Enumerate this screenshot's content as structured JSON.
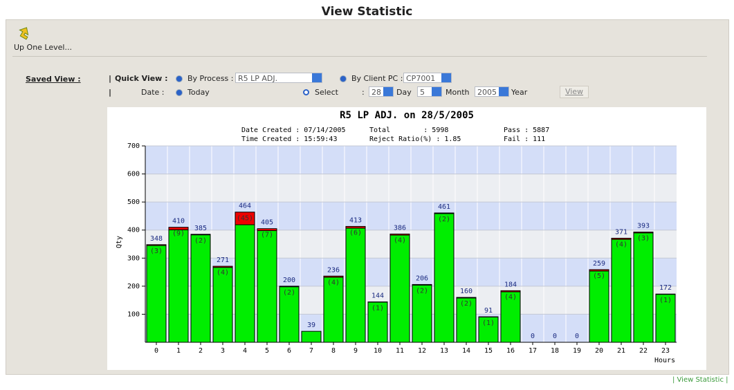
{
  "header": {
    "title": "View Statistic"
  },
  "toolbar": {
    "up_label": "Up One Level..."
  },
  "form": {
    "saved_view": "Saved View :",
    "sep": "|",
    "quick_view": "Quick View :",
    "by_process": "By Process :",
    "process_value": "R5 LP ADJ.",
    "by_client": "By Client PC :",
    "client_value": "CP7001",
    "date_label": "Date :",
    "today": "Today",
    "select": "Select",
    "colon": ":",
    "day_value": "28",
    "day": "Day",
    "month_value": "5",
    "month": "Month",
    "year_value": "2005",
    "year": "Year",
    "view": "View"
  },
  "chart_data": {
    "type": "stacked_bar",
    "title": "R5 LP ADJ. on 28/5/2005",
    "info": [
      "Date Created : 07/14/2005",
      "Total        : 5998",
      "Pass : 5887",
      "Time Created : 15:59:43",
      "Reject Ratio(%) : 1.85",
      "Fail : 111"
    ],
    "y_label": "Qty",
    "x_label": "Hours",
    "categories": [
      "0",
      "1",
      "2",
      "3",
      "4",
      "5",
      "6",
      "7",
      "8",
      "9",
      "10",
      "11",
      "12",
      "13",
      "14",
      "15",
      "16",
      "17",
      "18",
      "19",
      "20",
      "21",
      "22",
      "23"
    ],
    "totals": [
      348,
      410,
      385,
      271,
      464,
      405,
      200,
      39,
      236,
      413,
      144,
      386,
      206,
      461,
      160,
      91,
      184,
      0,
      0,
      0,
      259,
      371,
      393,
      172
    ],
    "series": [
      {
        "name": "Pass",
        "color": "#00ee00",
        "values": [
          345,
          401,
          383,
          267,
          419,
          398,
          198,
          39,
          232,
          407,
          143,
          382,
          204,
          459,
          158,
          90,
          180,
          0,
          0,
          0,
          254,
          367,
          390,
          171
        ]
      },
      {
        "name": "Reject",
        "color": "#ee0000",
        "values": [
          3,
          9,
          2,
          4,
          45,
          7,
          2,
          0,
          4,
          6,
          1,
          4,
          2,
          2,
          2,
          1,
          4,
          0,
          0,
          0,
          5,
          4,
          3,
          1
        ],
        "value_labels": [
          "(3)",
          "(9)",
          "(2)",
          "(4)",
          "(45)",
          "(7)",
          "(2)",
          null,
          "(4)",
          "(6)",
          "(1)",
          "(4)",
          "(2)",
          "(2)",
          "(2)",
          "(1)",
          "(4)",
          null,
          null,
          null,
          "(5)",
          "(4)",
          "(3)",
          "(1)"
        ]
      }
    ],
    "ylim": [
      0,
      700
    ],
    "yticks": [
      100,
      200,
      300,
      400,
      500,
      600,
      700
    ],
    "grid": true
  },
  "footer": {
    "link": "| View Statistic |"
  }
}
